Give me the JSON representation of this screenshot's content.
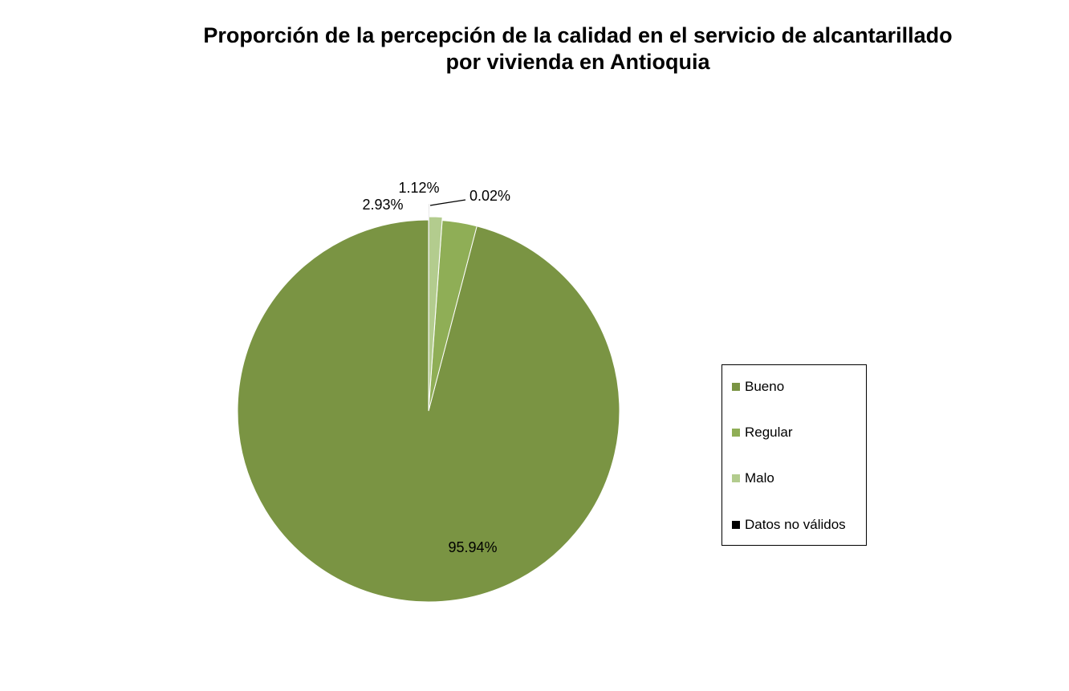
{
  "chart_data": {
    "type": "pie",
    "title": [
      "Proporción de la percepción de la calidad en el servicio de alcantarillado",
      "por vivienda en Antioquia"
    ],
    "slices": [
      {
        "name": "Bueno",
        "value": 95.94,
        "label": "95.94%",
        "color": "#7a9443"
      },
      {
        "name": "Regular",
        "value": 2.93,
        "label": "2.93%",
        "color": "#8fae56"
      },
      {
        "name": "Malo",
        "value": 1.12,
        "label": "1.12%",
        "color": "#b3cc8e"
      },
      {
        "name": "Datos no válidos",
        "value": 0.02,
        "label": "0.02%",
        "color": "#000000"
      }
    ],
    "legend_position": "right"
  }
}
